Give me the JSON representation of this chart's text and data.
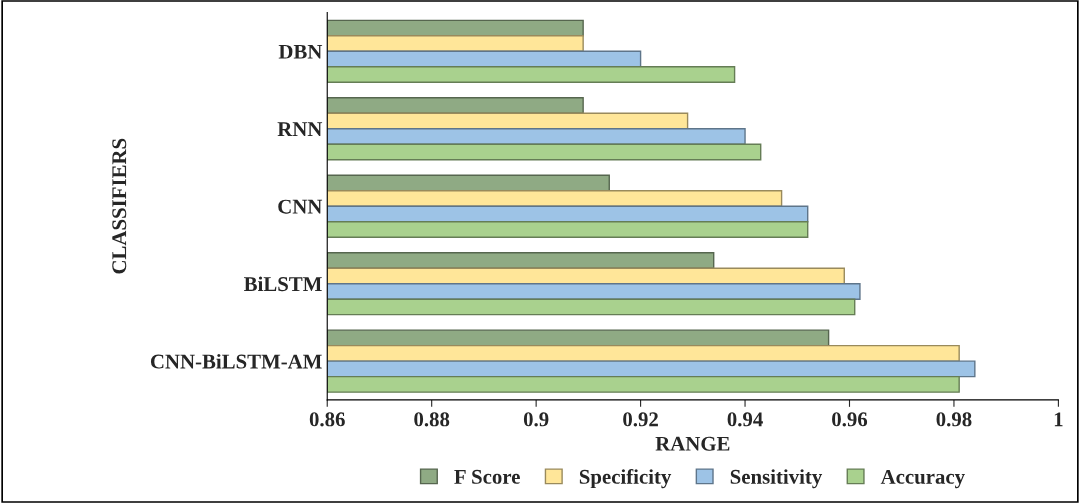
{
  "chart_data": {
    "type": "bar",
    "orientation": "horizontal",
    "xlabel": "RANGE",
    "ylabel": "CLASSIFIERS",
    "categories": [
      "DBN",
      "RNN",
      "CNN",
      "BiLSTM",
      "CNN-BiLSTM-AM"
    ],
    "series": [
      {
        "name": "F Score",
        "color": "#8faa84",
        "values": [
          0.909,
          0.909,
          0.914,
          0.934,
          0.956
        ]
      },
      {
        "name": "Specificity",
        "color": "#ffe699",
        "values": [
          0.909,
          0.929,
          0.947,
          0.959,
          0.981
        ]
      },
      {
        "name": "Sensitivity",
        "color": "#9dc3e6",
        "values": [
          0.92,
          0.94,
          0.952,
          0.962,
          0.984
        ]
      },
      {
        "name": "Accuracy",
        "color": "#a9d18e",
        "values": [
          0.938,
          0.943,
          0.952,
          0.961,
          0.981
        ]
      }
    ],
    "xlim": [
      0.86,
      1
    ],
    "xticks": [
      0.86,
      0.88,
      0.9,
      0.92,
      0.94,
      0.96,
      0.98,
      1
    ],
    "grid": false,
    "legend": "bottom"
  }
}
